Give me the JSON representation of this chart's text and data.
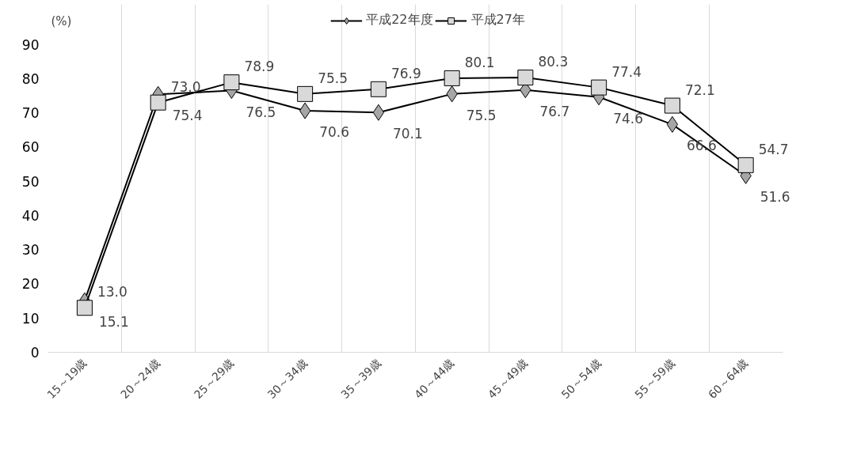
{
  "chart_data": {
    "type": "line",
    "ylabel": "(%)",
    "categories": [
      "15～19歳",
      "20～24歳",
      "25～29歳",
      "30～34歳",
      "35～39歳",
      "40～44歳",
      "45～49歳",
      "50～54歳",
      "55～59歳",
      "60～64歳"
    ],
    "series": [
      {
        "name": "平成22年度",
        "color": "#a6a6a6",
        "marker": "diamond",
        "values": [
          15.1,
          75.4,
          76.5,
          70.6,
          70.1,
          75.5,
          76.7,
          74.6,
          66.6,
          51.6
        ],
        "value_labels": [
          "15.1",
          "75.4",
          "76.5",
          "70.6",
          "70.1",
          "75.5",
          "76.7",
          "74.6",
          "66.6",
          "51.6"
        ]
      },
      {
        "name": "平成27年",
        "color": "#d9d9d9",
        "marker": "square",
        "values": [
          13.0,
          73.0,
          78.9,
          75.5,
          76.9,
          80.1,
          80.3,
          77.4,
          72.1,
          54.7
        ],
        "value_labels": [
          "13.0",
          "73.0",
          "78.9",
          "75.5",
          "76.9",
          "80.1",
          "80.3",
          "77.4",
          "72.1",
          "54.7"
        ]
      }
    ],
    "ylim": [
      0,
      90
    ],
    "yticks": [
      0,
      10,
      20,
      30,
      40,
      50,
      60,
      70,
      80,
      90
    ],
    "grid": "x",
    "legend": "top",
    "line_style": "solid"
  }
}
